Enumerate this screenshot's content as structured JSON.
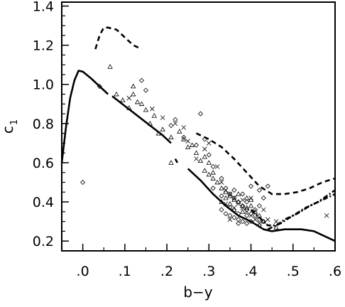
{
  "chart_data": {
    "type": "scatter",
    "title": "",
    "xlabel": "b−y",
    "ylabel": "c",
    "ylabel_subscript": "1",
    "xlim": [
      -0.05,
      0.6
    ],
    "ylim": [
      0.15,
      1.42
    ],
    "x_ticks": [
      {
        "value": 0.0,
        "label": ".0"
      },
      {
        "value": 0.1,
        "label": ".1"
      },
      {
        "value": 0.2,
        "label": ".2"
      },
      {
        "value": 0.3,
        "label": ".3"
      },
      {
        "value": 0.4,
        "label": ".4"
      },
      {
        "value": 0.5,
        "label": ".5"
      },
      {
        "value": 0.6,
        "label": ".6"
      }
    ],
    "y_ticks": [
      {
        "value": 0.2,
        "label": "0.2"
      },
      {
        "value": 0.4,
        "label": "0.4"
      },
      {
        "value": 0.6,
        "label": "0.6"
      },
      {
        "value": 0.8,
        "label": "0.8"
      },
      {
        "value": 1.0,
        "label": "1.0"
      },
      {
        "value": 1.2,
        "label": "1.2"
      },
      {
        "value": 1.4,
        "label": "1.4"
      }
    ],
    "grid": false,
    "lines": [
      {
        "style": "solid",
        "points": [
          [
            -0.05,
            0.6
          ],
          [
            -0.04,
            0.78
          ],
          [
            -0.03,
            0.93
          ],
          [
            -0.02,
            1.02
          ],
          [
            -0.01,
            1.07
          ],
          [
            0.0,
            1.065
          ],
          [
            0.02,
            1.03
          ],
          [
            0.04,
            0.99
          ],
          [
            0.06,
            0.95
          ]
        ]
      },
      {
        "style": "solid",
        "points": [
          [
            0.07,
            0.94
          ],
          [
            0.1,
            0.89
          ],
          [
            0.13,
            0.84
          ],
          [
            0.16,
            0.79
          ],
          [
            0.19,
            0.74
          ],
          [
            0.21,
            0.7
          ]
        ]
      },
      {
        "style": "solid",
        "points": [
          [
            0.22,
            0.62
          ],
          [
            0.225,
            0.6
          ]
        ]
      },
      {
        "style": "solid",
        "points": [
          [
            0.25,
            0.57
          ],
          [
            0.28,
            0.51
          ],
          [
            0.31,
            0.44
          ],
          [
            0.34,
            0.38
          ],
          [
            0.37,
            0.33
          ],
          [
            0.4,
            0.3
          ],
          [
            0.43,
            0.26
          ],
          [
            0.45,
            0.25
          ],
          [
            0.48,
            0.26
          ],
          [
            0.52,
            0.26
          ],
          [
            0.55,
            0.25
          ],
          [
            0.58,
            0.22
          ],
          [
            0.6,
            0.2
          ]
        ]
      },
      {
        "style": "dashed",
        "points": [
          [
            0.03,
            1.18
          ],
          [
            0.04,
            1.25
          ],
          [
            0.05,
            1.29
          ],
          [
            0.06,
            1.29
          ],
          [
            0.08,
            1.28
          ],
          [
            0.1,
            1.24
          ],
          [
            0.12,
            1.2
          ],
          [
            0.14,
            1.18
          ]
        ]
      },
      {
        "style": "dashed",
        "points": [
          [
            0.27,
            0.75
          ],
          [
            0.3,
            0.72
          ],
          [
            0.33,
            0.68
          ],
          [
            0.36,
            0.62
          ],
          [
            0.39,
            0.55
          ],
          [
            0.42,
            0.48
          ],
          [
            0.45,
            0.44
          ],
          [
            0.48,
            0.44
          ],
          [
            0.51,
            0.45
          ],
          [
            0.54,
            0.47
          ],
          [
            0.57,
            0.5
          ],
          [
            0.6,
            0.52
          ]
        ]
      },
      {
        "style": "dashdot",
        "points": [
          [
            0.4,
            0.36
          ],
          [
            0.42,
            0.32
          ],
          [
            0.44,
            0.28
          ],
          [
            0.46,
            0.28
          ],
          [
            0.48,
            0.31
          ],
          [
            0.51,
            0.34
          ],
          [
            0.54,
            0.38
          ],
          [
            0.57,
            0.41
          ],
          [
            0.6,
            0.44
          ]
        ]
      },
      {
        "style": "dashdot",
        "points": [
          [
            0.44,
            0.26
          ],
          [
            0.47,
            0.29
          ],
          [
            0.5,
            0.33
          ],
          [
            0.53,
            0.37
          ],
          [
            0.56,
            0.4
          ],
          [
            0.6,
            0.46
          ]
        ]
      }
    ],
    "series": [
      {
        "marker": "triangle",
        "points": [
          [
            0.065,
            1.09
          ],
          [
            0.08,
            0.95
          ],
          [
            0.095,
            0.92
          ],
          [
            0.11,
            0.88
          ],
          [
            0.12,
            0.99
          ],
          [
            0.12,
            0.95
          ],
          [
            0.14,
            0.9
          ],
          [
            0.15,
            0.87
          ],
          [
            0.16,
            0.8
          ],
          [
            0.18,
            0.75
          ],
          [
            0.19,
            0.77
          ],
          [
            0.21,
            0.73
          ],
          [
            0.21,
            0.6
          ],
          [
            0.24,
            0.72
          ],
          [
            0.25,
            0.68
          ],
          [
            0.27,
            0.65
          ],
          [
            0.28,
            0.61
          ],
          [
            0.29,
            0.56
          ],
          [
            0.3,
            0.54
          ],
          [
            0.31,
            0.52
          ],
          [
            0.32,
            0.5
          ],
          [
            0.33,
            0.47
          ],
          [
            0.34,
            0.45
          ],
          [
            0.35,
            0.43
          ],
          [
            0.36,
            0.41
          ],
          [
            0.37,
            0.4
          ],
          [
            0.38,
            0.38
          ],
          [
            0.39,
            0.37
          ],
          [
            0.41,
            0.35
          ],
          [
            0.42,
            0.33
          ],
          [
            0.43,
            0.3
          ],
          [
            0.46,
            0.27
          ],
          [
            0.33,
            0.4
          ],
          [
            0.35,
            0.39
          ],
          [
            0.37,
            0.44
          ],
          [
            0.39,
            0.42
          ],
          [
            0.4,
            0.41
          ],
          [
            0.36,
            0.36
          ],
          [
            0.38,
            0.35
          ],
          [
            0.4,
            0.38
          ],
          [
            0.34,
            0.42
          ],
          [
            0.31,
            0.55
          ],
          [
            0.29,
            0.63
          ],
          [
            0.26,
            0.69
          ],
          [
            0.23,
            0.76
          ],
          [
            0.13,
            0.91
          ],
          [
            0.17,
            0.84
          ],
          [
            0.3,
            0.6
          ]
        ]
      },
      {
        "marker": "diamond",
        "points": [
          [
            0.0,
            0.5
          ],
          [
            0.04,
            0.99
          ],
          [
            0.14,
            1.02
          ],
          [
            0.15,
            0.97
          ],
          [
            0.21,
            0.79
          ],
          [
            0.22,
            0.82
          ],
          [
            0.24,
            0.73
          ],
          [
            0.27,
            0.69
          ],
          [
            0.28,
            0.85
          ],
          [
            0.29,
            0.72
          ],
          [
            0.3,
            0.64
          ],
          [
            0.31,
            0.58
          ],
          [
            0.33,
            0.52
          ],
          [
            0.34,
            0.47
          ],
          [
            0.35,
            0.44
          ],
          [
            0.36,
            0.42
          ],
          [
            0.37,
            0.4
          ],
          [
            0.38,
            0.38
          ],
          [
            0.39,
            0.36
          ],
          [
            0.4,
            0.34
          ],
          [
            0.41,
            0.33
          ],
          [
            0.42,
            0.31
          ],
          [
            0.43,
            0.3
          ],
          [
            0.44,
            0.48
          ],
          [
            0.33,
            0.36
          ],
          [
            0.34,
            0.34
          ],
          [
            0.35,
            0.33
          ],
          [
            0.36,
            0.32
          ],
          [
            0.37,
            0.31
          ],
          [
            0.38,
            0.3
          ],
          [
            0.39,
            0.29
          ],
          [
            0.4,
            0.3
          ],
          [
            0.41,
            0.36
          ],
          [
            0.42,
            0.38
          ],
          [
            0.36,
            0.46
          ],
          [
            0.38,
            0.44
          ],
          [
            0.4,
            0.48
          ],
          [
            0.42,
            0.46
          ],
          [
            0.37,
            0.34
          ],
          [
            0.39,
            0.4
          ],
          [
            0.35,
            0.37
          ],
          [
            0.33,
            0.43
          ],
          [
            0.31,
            0.47
          ],
          [
            0.43,
            0.42
          ],
          [
            0.42,
            0.28
          ],
          [
            0.37,
            0.29
          ],
          [
            0.39,
            0.33
          ]
        ]
      },
      {
        "marker": "cross",
        "points": [
          [
            0.11,
            0.93
          ],
          [
            0.165,
            0.875
          ],
          [
            0.19,
            0.83
          ],
          [
            0.22,
            0.8
          ],
          [
            0.24,
            0.78
          ],
          [
            0.27,
            0.62
          ],
          [
            0.29,
            0.67
          ],
          [
            0.32,
            0.58
          ],
          [
            0.33,
            0.5
          ],
          [
            0.34,
            0.46
          ],
          [
            0.35,
            0.44
          ],
          [
            0.36,
            0.42
          ],
          [
            0.37,
            0.39
          ],
          [
            0.38,
            0.37
          ],
          [
            0.39,
            0.35
          ],
          [
            0.4,
            0.33
          ],
          [
            0.41,
            0.31
          ],
          [
            0.42,
            0.29
          ],
          [
            0.44,
            0.31
          ],
          [
            0.46,
            0.3
          ],
          [
            0.58,
            0.33
          ],
          [
            0.36,
            0.37
          ],
          [
            0.38,
            0.41
          ],
          [
            0.4,
            0.42
          ],
          [
            0.34,
            0.39
          ],
          [
            0.35,
            0.31
          ],
          [
            0.43,
            0.36
          ],
          [
            0.3,
            0.7
          ],
          [
            0.25,
            0.71
          ]
        ]
      }
    ]
  }
}
